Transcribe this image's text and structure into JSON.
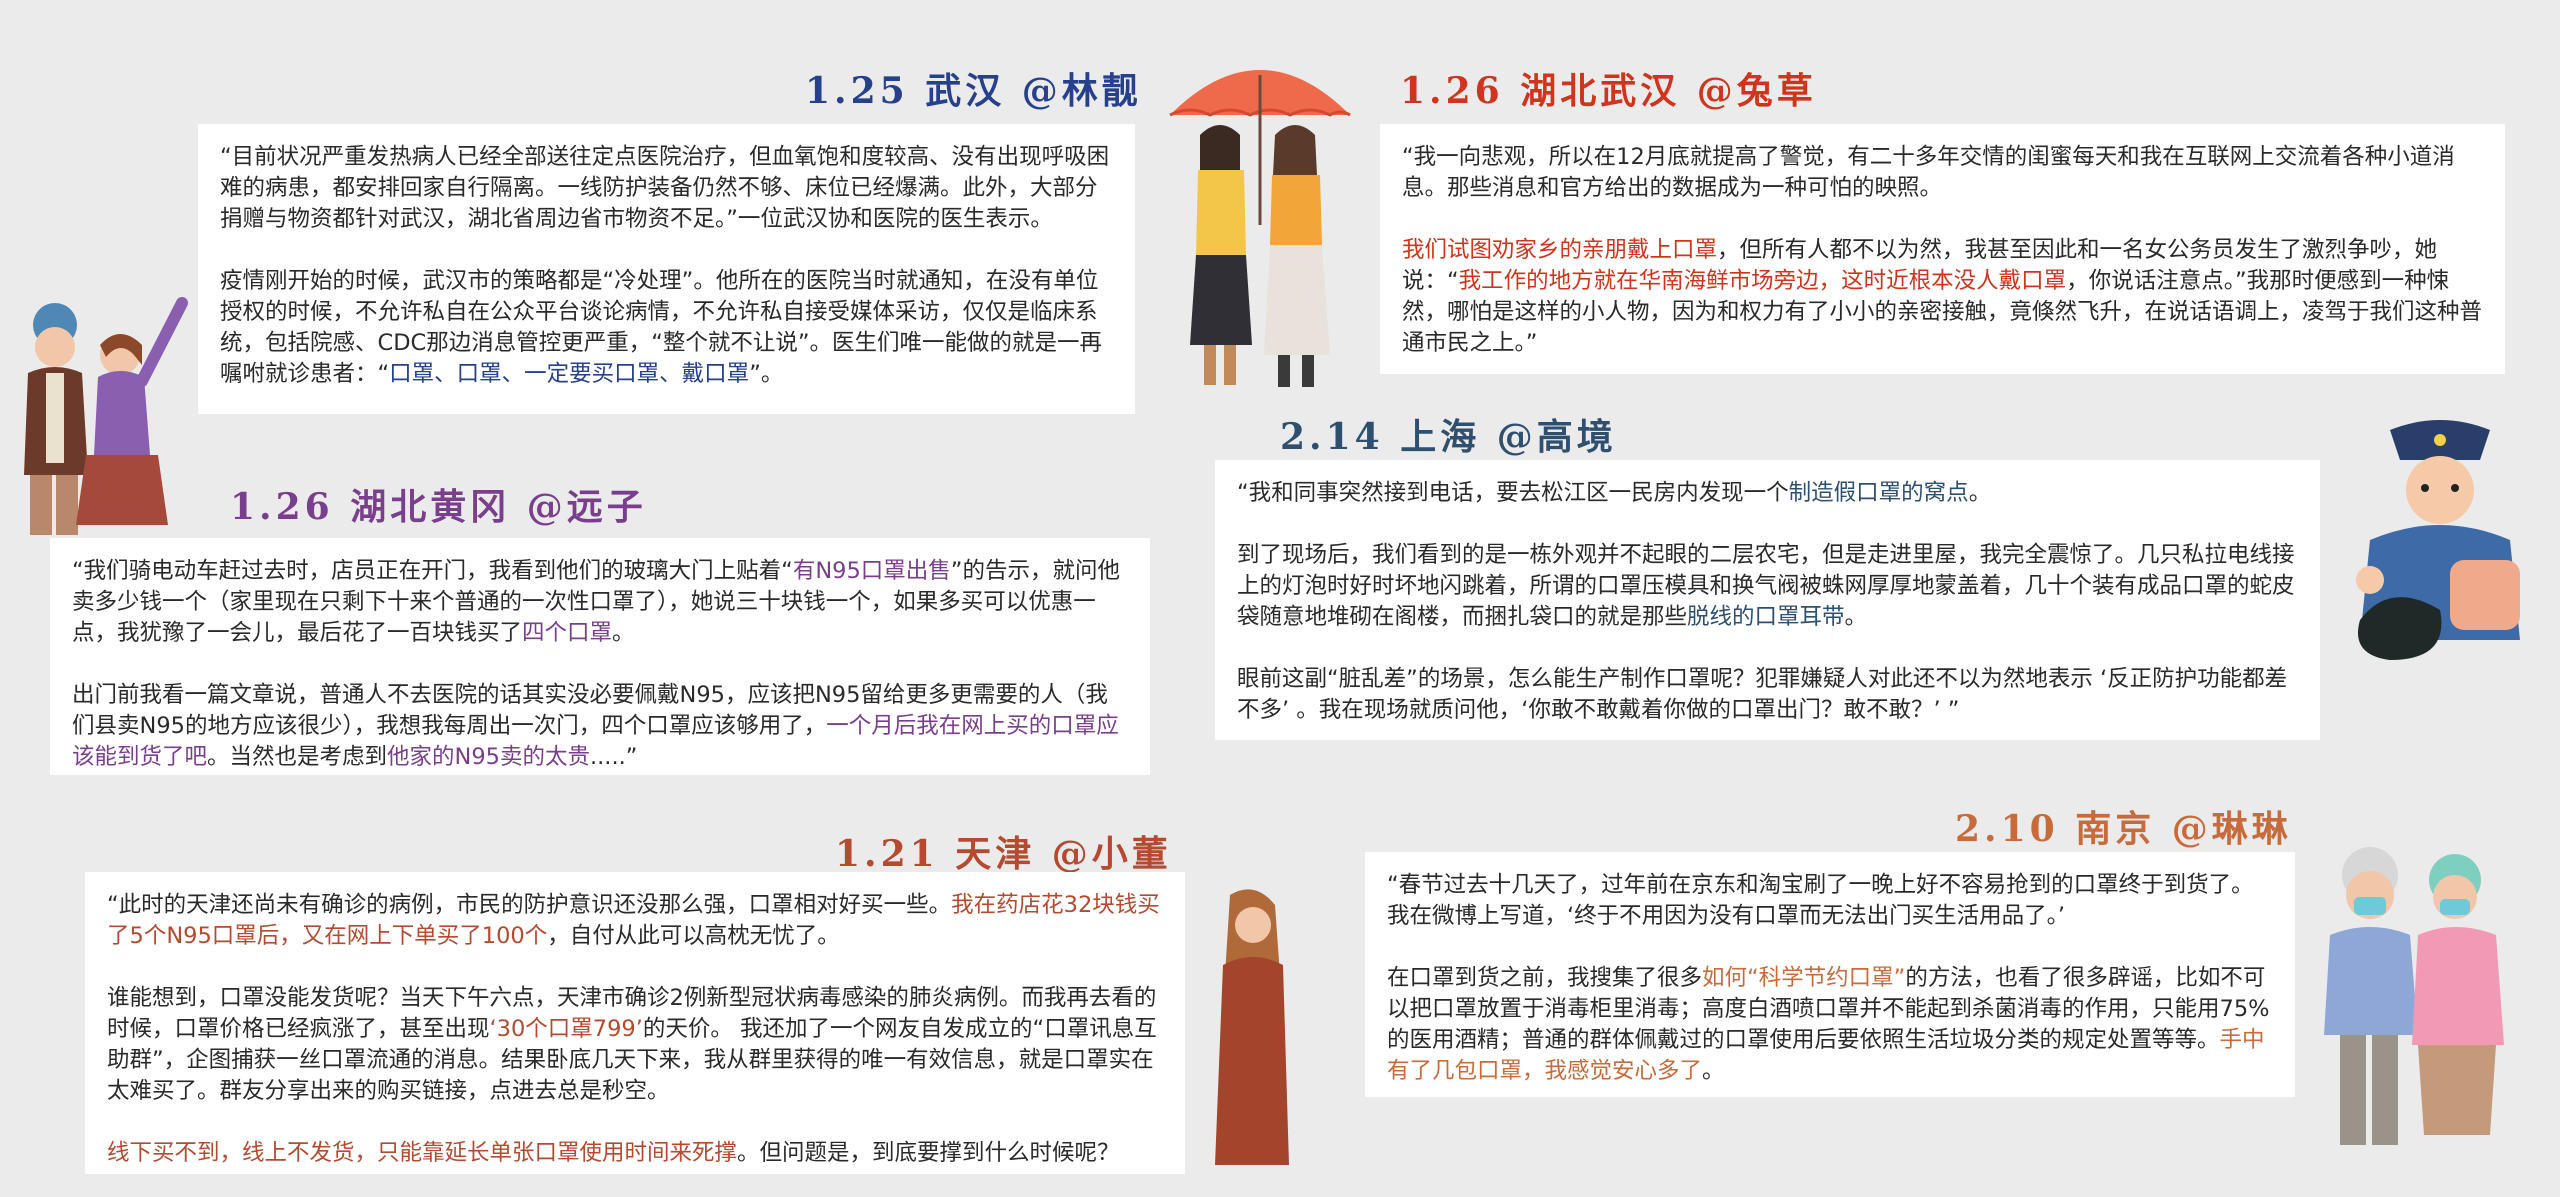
{
  "colors": {
    "background": "#ebebec",
    "blue": "#27408b",
    "red": "#d0341c",
    "purple": "#7a3f8c",
    "brick": "#b44a2f",
    "orange": "#c76b3b",
    "navy": "#2f4f6f"
  },
  "stories": {
    "wuhan": {
      "header": "1.25 武汉 @林靓",
      "p1": "“目前状况严重发热病人已经全部送往定点医院治疗，但血氧饱和度较高、没有出现呼吸困难的病患，都安排回家自行隔离。一线防护装备仍然不够、床位已经爆满。此外，大部分捐赠与物资都针对武汉，湖北省周边省市物资不足。”一位武汉协和医院的医生表示。",
      "p2a": "疫情刚开始的时候，武汉市的策略都是“冷处理”。他所在的医院当时就通知，在没有单位授权的时候，不允许私自在公众平台谈论病情，不允许私自接受媒体采访，仅仅是临床系统，包括院感、CDC那边消息管控更严重，“整个就不让说”。医生们唯一能做的就是一再嘱咐就诊患者：“",
      "p2b": "口罩、口罩、一定要买口罩、戴口罩",
      "p2c": "”。"
    },
    "hubei": {
      "header": "1.26 湖北武汉 @兔草",
      "p1": "“我一向悲观，所以在12月底就提高了警觉，有二十多年交情的闺蜜每天和我在互联网上交流着各种小道消息。那些消息和官方给出的数据成为一种可怕的映照。",
      "p2a": "我们试图劝家乡的亲朋戴上口罩",
      "p2b": "，但所有人都不以为然，我甚至因此和一名女公务员发生了激烈争吵，她说：“",
      "p2c": "我工作的地方就在华南海鲜市场旁边，这时近根本没人戴口罩",
      "p2d": "，你说话注意点。”我那时便感到一种悚然，哪怕是这样的小人物，因为和权力有了小小的亲密接触，竟倏然飞升，在说话语调上，凌驾于我们这种普通市民之上。”"
    },
    "shanghai": {
      "header": "2.14 上海 @高境",
      "p1a": "“我和同事突然接到电话，要去松江区一民房内发现一个",
      "p1b": "制造假口罩的窝点",
      "p1c": "。",
      "p2a": "到了现场后，我们看到的是一栋外观并不起眼的二层农宅，但是走进里屋，我完全震惊了。几只私拉电线接上的灯泡时好时坏地闪跳着，所谓的口罩压模具和换气阀被蛛网厚厚地蒙盖着，几十个装有成品口罩的蛇皮袋随意地堆砌在阁楼，而捆扎袋口的就是那些",
      "p2b": "脱线的口罩耳带",
      "p2c": "。",
      "p3": "眼前这副“脏乱差”的场景，怎么能生产制作口罩呢？犯罪嫌疑人对此还不以为然地表示 ‘反正防护功能都差不多’ 。我在现场就质问他，‘你敢不敢戴着你做的口罩出门？敢不敢？’ ”"
    },
    "huanggang": {
      "header": "1.26 湖北黄冈 @远子",
      "p1a": "“我们骑电动车赶过去时，店员正在开门，我看到他们的玻璃大门上贴着“",
      "p1b": "有N95口罩出售",
      "p1c": "”的告示，就问他卖多少钱一个（家里现在只剩下十来个普通的一次性口罩了），她说三十块钱一个，如果多买可以优惠一点，我犹豫了一会儿，最后花了一百块钱买了",
      "p1d": "四个口罩",
      "p1e": "。",
      "p2a": "出门前我看一篇文章说，普通人不去医院的话其实没必要佩戴N95，应该把N95留给更多更需要的人（我们县卖N95的地方应该很少），我想我每周出一次门，四个口罩应该够用了，",
      "p2b": "一个月后我在网上买的口罩应该能到货了吧",
      "p2c": "。当然也是考虑到",
      "p2d": "他家的N95卖的太贵",
      "p2e": ".....”"
    },
    "tianjin": {
      "header": "1.21 天津 @小董",
      "p1a": "“此时的天津还尚未有确诊的病例，市民的防护意识还没那么强，口罩相对好买一些。",
      "p1b": "我在药店花32块钱买了5个N95口罩后，又在网上下单买了100个",
      "p1c": "，自付从此可以高枕无忧了。",
      "p2a": "谁能想到，口罩没能发货呢？当天下午六点，天津市确诊2例新型冠状病毒感染的肺炎病例。而我再去看的时候，口罩价格已经疯涨了，甚至出现",
      "p2b": "‘30个口罩799’",
      "p2c": "的天价。 我还加了一个网友自发成立的“口罩讯息互助群”，企图捕获一丝口罩流通的消息。结果卧底几天下来，我从群里获得的唯一有效信息，就是口罩实在太难买了。群友分享出来的购买链接，点进去总是秒空。",
      "p3a": "线下买不到，线上不发货，只能靠延长单张口罩使用时间来死撑",
      "p3b": "。但问题是，到底要撑到什么时候呢？"
    },
    "nanjing": {
      "header": "2.10 南京 @琳琳",
      "p1": "“春节过去十几天了，过年前在京东和淘宝刷了一晚上好不容易抢到的口罩终于到货了。我在微博上写道，‘终于不用因为没有口罩而无法出门买生活用品了。’",
      "p2a": "在口罩到货之前，我搜集了很多",
      "p2b": "如何“科学节约口罩”",
      "p2c": "的方法，也看了很多辟谣，比如不可以把口罩放置于消毒柜里消毒；高度白酒喷口罩并不能起到杀菌消毒的作用，只能用75%的医用酒精；普通的群体佩戴过的口罩使用后要依照生活垃圾分类的规定处置等等。",
      "p2d": "手中有了几包口罩，我感觉安心多了",
      "p2e": "。"
    }
  }
}
